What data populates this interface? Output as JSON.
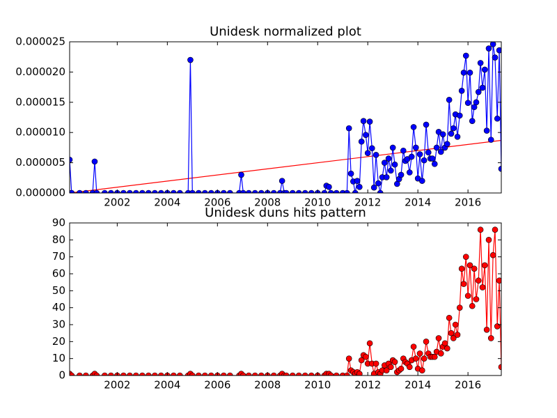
{
  "chart_data": [
    {
      "type": "line",
      "title": "Unidesk normalized plot",
      "x": [
        2000.1,
        2000.18,
        2000.5,
        2000.75,
        2001.02,
        2001.1,
        2001.18,
        2001.5,
        2001.75,
        2002,
        2002.25,
        2002.5,
        2002.75,
        2003,
        2003.25,
        2003.5,
        2003.75,
        2004,
        2004.25,
        2004.5,
        2004.83,
        2004.92,
        2005,
        2005.25,
        2005.5,
        2005.75,
        2006,
        2006.25,
        2006.5,
        2006.87,
        2006.95,
        2007.03,
        2007.25,
        2007.5,
        2007.75,
        2008,
        2008.25,
        2008.5,
        2008.58,
        2008.67,
        2008.75,
        2009,
        2009.25,
        2009.5,
        2009.75,
        2010,
        2010.27,
        2010.35,
        2010.45,
        2010.53,
        2010.75,
        2011,
        2011.17,
        2011.25,
        2011.33,
        2011.42,
        2011.5,
        2011.58,
        2011.67,
        2011.75,
        2011.83,
        2011.92,
        2012,
        2012.08,
        2012.17,
        2012.25,
        2012.33,
        2012.42,
        2012.5,
        2012.58,
        2012.67,
        2012.75,
        2012.83,
        2012.92,
        2013,
        2013.08,
        2013.17,
        2013.25,
        2013.33,
        2013.42,
        2013.5,
        2013.58,
        2013.67,
        2013.75,
        2013.83,
        2013.92,
        2014,
        2014.08,
        2014.17,
        2014.25,
        2014.33,
        2014.42,
        2014.5,
        2014.58,
        2014.67,
        2014.75,
        2014.83,
        2014.92,
        2015,
        2015.08,
        2015.17,
        2015.25,
        2015.33,
        2015.42,
        2015.5,
        2015.58,
        2015.67,
        2015.75,
        2015.83,
        2015.92,
        2016,
        2016.08,
        2016.17,
        2016.25,
        2016.33,
        2016.42,
        2016.5,
        2016.58,
        2016.67,
        2016.75,
        2016.83,
        2016.92,
        2017,
        2017.08,
        2017.17,
        2017.25,
        2017.33
      ],
      "series": [
        {
          "color": "#0000ff",
          "values": [
            5.5e-06,
            0,
            0,
            0,
            0,
            5.2e-06,
            0,
            0,
            0,
            0,
            0,
            0,
            0,
            0,
            0,
            0,
            0,
            0,
            0,
            0,
            0,
            2.2e-05,
            0,
            0,
            0,
            0,
            0,
            0,
            0,
            0,
            3e-06,
            0,
            0,
            0,
            0,
            0,
            0,
            0,
            2e-06,
            0,
            0,
            0,
            0,
            0,
            0,
            0,
            0,
            1.2e-06,
            1e-06,
            0,
            0,
            0,
            0,
            1.07e-05,
            3.2e-06,
            1.9e-06,
            0,
            2e-06,
            1e-06,
            8.5e-06,
            1.19e-05,
            9.6e-06,
            6.6e-06,
            1.18e-05,
            7.4e-06,
            9e-07,
            6.3e-06,
            1.6e-06,
            0,
            2.6e-06,
            5e-06,
            2.6e-06,
            5.7e-06,
            3.7e-06,
            7.5e-06,
            4.7e-06,
            1.5e-06,
            2.3e-06,
            3e-06,
            7e-06,
            5.3e-06,
            5.6e-06,
            3.4e-06,
            6e-06,
            1.09e-05,
            7.5e-06,
            2.4e-06,
            6.4e-06,
            2e-06,
            5.4e-06,
            1.13e-05,
            6.7e-06,
            5.7e-06,
            5.7e-06,
            4.8e-06,
            7.5e-06,
            1.01e-05,
            6.8e-06,
            9.7e-06,
            7.5e-06,
            8.1e-06,
            1.54e-05,
            9.8e-06,
            1.07e-05,
            1.3e-05,
            9.3e-06,
            1.28e-05,
            1.69e-05,
            1.99e-05,
            2.27e-05,
            1.49e-05,
            1.99e-05,
            1.19e-05,
            1.42e-05,
            1.5e-05,
            1.67e-05,
            2.15e-05,
            1.74e-05,
            2.04e-05,
            1.03e-05,
            2.39e-05,
            8.8e-06,
            2.46e-05,
            2.24e-05,
            1.23e-05,
            2.36e-05,
            4e-06
          ]
        }
      ],
      "trend_line": {
        "color": "#ff0000",
        "x": [
          2000.1,
          2017.33
        ],
        "values": [
          0,
          8.7e-06
        ]
      },
      "xlim": [
        2000.1,
        2017.33
      ],
      "xticks": [
        2002,
        2004,
        2006,
        2008,
        2010,
        2012,
        2014,
        2016
      ],
      "ylim": [
        0,
        2.5e-05
      ],
      "yticks": [
        {
          "value": 0,
          "label": "0.000000"
        },
        {
          "value": 5e-06,
          "label": "0.000005"
        },
        {
          "value": 1e-05,
          "label": "0.000010"
        },
        {
          "value": 1.5e-05,
          "label": "0.000015"
        },
        {
          "value": 2e-05,
          "label": "0.000020"
        },
        {
          "value": 2.5e-05,
          "label": "0.000025"
        }
      ]
    },
    {
      "type": "line",
      "title": "Unidesk duns hits pattern",
      "x": [
        2000.1,
        2000.18,
        2000.5,
        2000.75,
        2001.02,
        2001.1,
        2001.18,
        2001.5,
        2001.75,
        2002,
        2002.25,
        2002.5,
        2002.75,
        2003,
        2003.25,
        2003.5,
        2003.75,
        2004,
        2004.25,
        2004.5,
        2004.83,
        2004.92,
        2005,
        2005.25,
        2005.5,
        2005.75,
        2006,
        2006.25,
        2006.5,
        2006.87,
        2006.95,
        2007.03,
        2007.25,
        2007.5,
        2007.75,
        2008,
        2008.25,
        2008.5,
        2008.58,
        2008.67,
        2008.75,
        2009,
        2009.25,
        2009.5,
        2009.75,
        2010,
        2010.27,
        2010.35,
        2010.45,
        2010.53,
        2010.75,
        2011,
        2011.17,
        2011.25,
        2011.33,
        2011.42,
        2011.5,
        2011.58,
        2011.67,
        2011.75,
        2011.83,
        2011.92,
        2012,
        2012.08,
        2012.17,
        2012.25,
        2012.33,
        2012.42,
        2012.5,
        2012.58,
        2012.67,
        2012.75,
        2012.83,
        2012.92,
        2013,
        2013.08,
        2013.17,
        2013.25,
        2013.33,
        2013.42,
        2013.5,
        2013.58,
        2013.67,
        2013.75,
        2013.83,
        2013.92,
        2014,
        2014.08,
        2014.17,
        2014.25,
        2014.33,
        2014.42,
        2014.5,
        2014.58,
        2014.67,
        2014.75,
        2014.83,
        2014.92,
        2015,
        2015.08,
        2015.17,
        2015.25,
        2015.33,
        2015.42,
        2015.5,
        2015.58,
        2015.67,
        2015.75,
        2015.83,
        2015.92,
        2016,
        2016.08,
        2016.17,
        2016.25,
        2016.33,
        2016.42,
        2016.5,
        2016.58,
        2016.67,
        2016.75,
        2016.83,
        2016.92,
        2017,
        2017.08,
        2017.17,
        2017.25,
        2017.33
      ],
      "series": [
        {
          "color": "#ff0000",
          "values": [
            1,
            0,
            0,
            0,
            0,
            1,
            0,
            0,
            0,
            0,
            0,
            0,
            0,
            0,
            0,
            0,
            0,
            0,
            0,
            0,
            0,
            1,
            0,
            0,
            0,
            0,
            0,
            0,
            0,
            0,
            1,
            0,
            0,
            0,
            0,
            0,
            0,
            0,
            1,
            0,
            0,
            0,
            0,
            0,
            0,
            0,
            0,
            1,
            1,
            0,
            0,
            0,
            0,
            10,
            3,
            2,
            1,
            2,
            1,
            9,
            12,
            11,
            7,
            19,
            7,
            1,
            7,
            2,
            1,
            3,
            6,
            3,
            7,
            5,
            9,
            8,
            2,
            3,
            4,
            10,
            8,
            7,
            5,
            9,
            17,
            10,
            4,
            13,
            3,
            10,
            20,
            13,
            11,
            11,
            11,
            14,
            22,
            13,
            17,
            19,
            16,
            34,
            25,
            22,
            30,
            24,
            40,
            63,
            54,
            70,
            47,
            65,
            41,
            63,
            45,
            56,
            86,
            52,
            65,
            27,
            80,
            22,
            71,
            86,
            29,
            56,
            5
          ]
        }
      ],
      "xlim": [
        2000.1,
        2017.33
      ],
      "xticks": [
        2002,
        2004,
        2006,
        2008,
        2010,
        2012,
        2014,
        2016
      ],
      "ylim": [
        0,
        90
      ],
      "yticks": [
        0,
        10,
        20,
        30,
        40,
        50,
        60,
        70,
        80,
        90
      ]
    }
  ]
}
